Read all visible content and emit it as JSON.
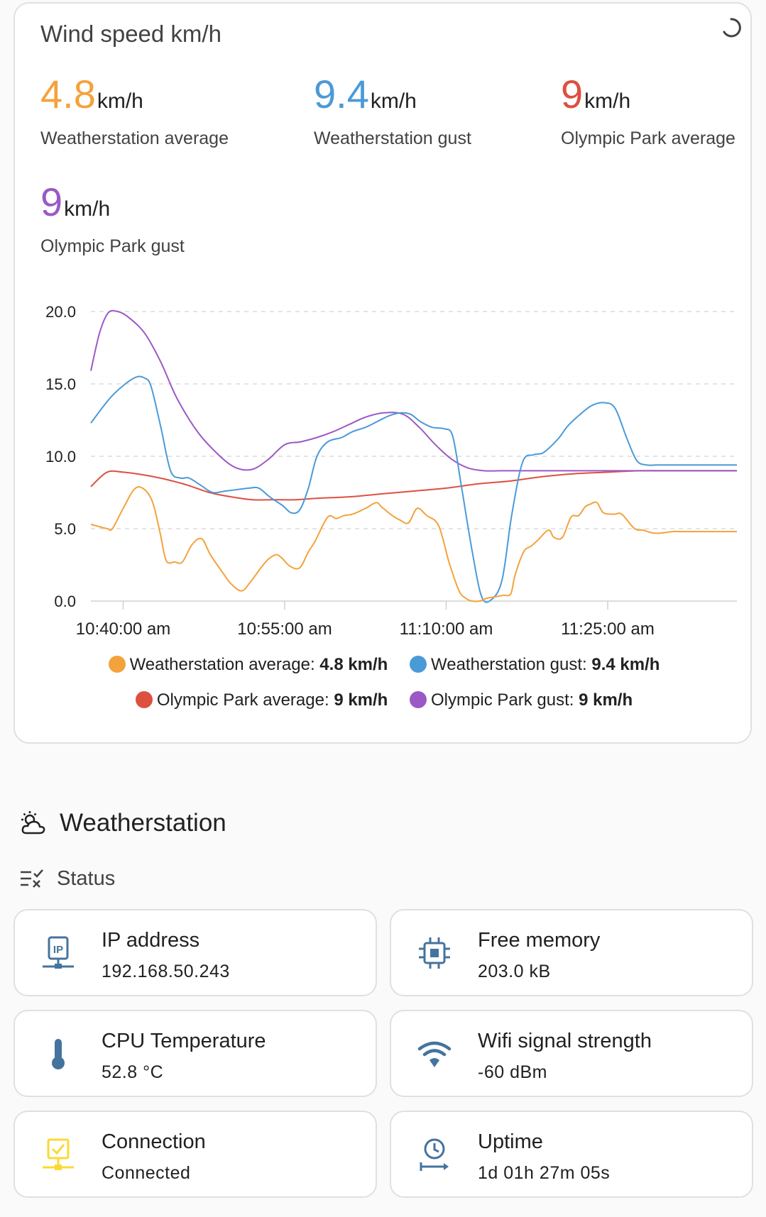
{
  "card": {
    "title": "Wind speed km/h",
    "stats": [
      {
        "value": "4.8",
        "unit": "km/h",
        "label": "Weatherstation average",
        "color": "#f4a23b"
      },
      {
        "value": "9.4",
        "unit": "km/h",
        "label": "Weatherstation gust",
        "color": "#4b9ad8"
      },
      {
        "value": "9",
        "unit": "km/h",
        "label": "Olympic Park average",
        "color": "#dc5040"
      },
      {
        "value": "9",
        "unit": "km/h",
        "label": "Olympic Park gust",
        "color": "#9b59c5"
      }
    ]
  },
  "chart_data": {
    "type": "line",
    "title": "",
    "xlabel": "",
    "ylabel": "",
    "x_ticks": [
      "10:40:00 am",
      "10:55:00 am",
      "11:10:00 am",
      "11:25:00 am"
    ],
    "y_ticks": [
      "0.0",
      "5.0",
      "10.0",
      "15.0",
      "20.0"
    ],
    "ylim": [
      0,
      20
    ],
    "xlim_minutes": [
      0,
      60
    ],
    "x_axis_start": "10:37:00 am",
    "grid": true,
    "legend_position": "bottom",
    "series": [
      {
        "name": "Weatherstation average",
        "legend_value": "4.8 km/h",
        "color": "#f4a23b",
        "x": [
          0,
          1.5,
          2,
          3,
          4,
          4.8,
          5.7,
          6.4,
          7,
          7.8,
          8.5,
          9.4,
          10.3,
          11.1,
          12.3,
          13,
          14,
          14.8,
          15.8,
          16.5,
          17.2,
          17.7,
          18.5,
          19.4,
          20.2,
          20.8,
          22,
          22.8,
          23.5,
          24.3,
          25.5,
          26.5,
          27,
          28,
          28.7,
          29.5,
          30.3,
          31.2,
          32.3,
          33.3,
          34.2,
          34.8,
          35.4,
          36.1,
          36.8,
          37.6,
          38.3,
          39,
          39.4,
          40.2,
          40.9,
          41.5,
          42.5,
          43,
          43.8,
          44.6,
          45.3,
          45.9,
          46.4,
          47,
          47.6,
          48.6,
          49.3,
          50.5,
          51.3,
          52.2,
          53,
          54,
          54.8,
          55.7,
          56.5,
          57.4,
          58.1,
          59,
          60
        ],
        "y": [
          5.3,
          5.0,
          5.0,
          6.4,
          7.7,
          7.8,
          6.9,
          4.8,
          2.8,
          2.7,
          2.7,
          3.9,
          4.3,
          3.2,
          1.9,
          1.2,
          0.7,
          1.3,
          2.3,
          2.9,
          3.2,
          3.0,
          2.4,
          2.3,
          3.4,
          4.1,
          5.8,
          5.7,
          5.9,
          6.0,
          6.4,
          6.8,
          6.5,
          5.9,
          5.6,
          5.4,
          6.4,
          5.9,
          5.2,
          2.6,
          0.7,
          0.2,
          0.0,
          0.0,
          0.2,
          0.3,
          0.4,
          0.5,
          1.8,
          3.4,
          3.8,
          4.2,
          4.9,
          4.4,
          4.4,
          5.8,
          5.9,
          6.5,
          6.7,
          6.8,
          6.1,
          6.0,
          6.0,
          5.0,
          4.9,
          4.7,
          4.7,
          4.8,
          4.8,
          4.8,
          4.8,
          4.8,
          4.8,
          4.8,
          4.8
        ]
      },
      {
        "name": "Weatherstation gust",
        "legend_value": "9.4 km/h",
        "color": "#4b9ad8",
        "x": [
          0,
          2,
          4,
          5,
          5.6,
          6.5,
          7.4,
          8.3,
          9.1,
          10.2,
          11.3,
          12.5,
          13.6,
          14.7,
          15.6,
          16.6,
          17.8,
          18.6,
          19.4,
          20.2,
          21,
          22,
          23.3,
          24.3,
          25.5,
          26.6,
          27.7,
          28.8,
          29.7,
          30.6,
          31.7,
          32.8,
          33.6,
          34.4,
          35.4,
          36.3,
          37.2,
          38.2,
          39.1,
          40.1,
          41.1,
          41.9,
          42.6,
          43.5,
          44.3,
          45.3,
          46.5,
          47.7,
          48.7,
          49.8,
          50.7,
          51.6,
          52.5,
          53.5,
          54.5,
          55,
          56,
          57.3,
          58.5,
          60
        ],
        "y": [
          12.3,
          14.2,
          15.4,
          15.4,
          14.8,
          12.0,
          9.0,
          8.5,
          8.5,
          8.0,
          7.5,
          7.6,
          7.7,
          7.8,
          7.8,
          7.2,
          6.6,
          6.1,
          6.3,
          7.8,
          10.0,
          11.0,
          11.3,
          11.7,
          12.0,
          12.4,
          12.8,
          13.0,
          12.9,
          12.4,
          12.0,
          11.9,
          11.4,
          8.0,
          3.5,
          0.3,
          0.1,
          1.5,
          6.0,
          9.6,
          10.1,
          10.2,
          10.6,
          11.3,
          12.1,
          12.8,
          13.5,
          13.7,
          13.3,
          11.2,
          9.7,
          9.4,
          9.4,
          9.4,
          9.4,
          9.4,
          9.4,
          9.4,
          9.4,
          9.4
        ]
      },
      {
        "name": "Olympic Park average",
        "legend_value": "9 km/h",
        "color": "#dc5040",
        "x": [
          0,
          1.5,
          3,
          5,
          7,
          9,
          11,
          13,
          15,
          17,
          19,
          21,
          24,
          27,
          30,
          33,
          36,
          39,
          42,
          45,
          48,
          51,
          54,
          57,
          60
        ],
        "y": [
          7.9,
          8.9,
          8.9,
          8.7,
          8.4,
          8.0,
          7.5,
          7.2,
          7.0,
          7.0,
          7.0,
          7.1,
          7.2,
          7.4,
          7.6,
          7.8,
          8.1,
          8.3,
          8.6,
          8.8,
          8.9,
          9.0,
          9.0,
          9.0,
          9.0
        ]
      },
      {
        "name": "Olympic Park gust",
        "legend_value": "9 km/h",
        "color": "#9b59c5",
        "x": [
          0,
          0.8,
          1.6,
          2.5,
          3.5,
          5,
          6.5,
          8,
          10,
          12,
          13.5,
          15,
          16.5,
          18,
          19.5,
          21,
          22.5,
          24,
          25.5,
          27.2,
          29,
          30.5,
          32,
          33.5,
          35,
          36.5,
          38,
          40,
          43,
          46,
          50,
          54,
          60
        ],
        "y": [
          15.9,
          18.5,
          19.9,
          20.0,
          19.6,
          18.5,
          16.5,
          14.0,
          11.6,
          10.0,
          9.2,
          9.1,
          9.8,
          10.8,
          11.0,
          11.3,
          11.7,
          12.2,
          12.7,
          13.0,
          12.9,
          12.0,
          10.8,
          9.8,
          9.2,
          9.0,
          9.0,
          9.0,
          9.0,
          9.0,
          9.0,
          9.0,
          9.0
        ]
      }
    ]
  },
  "section": {
    "title": "Weatherstation",
    "subsection": "Status"
  },
  "tiles": [
    {
      "name": "IP address",
      "value": "192.168.50.243",
      "icon": "ip-network-icon",
      "color": "#44739e"
    },
    {
      "name": "Free memory",
      "value": "203.0 kB",
      "icon": "chip-icon",
      "color": "#44739e"
    },
    {
      "name": "CPU Temperature",
      "value": "52.8 °C",
      "icon": "thermometer-icon",
      "color": "#44739e"
    },
    {
      "name": "Wifi signal strength",
      "value": "-60 dBm",
      "icon": "wifi-icon",
      "color": "#44739e"
    },
    {
      "name": "Connection",
      "value": "Connected",
      "icon": "lan-connect-icon",
      "color": "#fdd835"
    },
    {
      "name": "Uptime",
      "value": "1d 01h 27m 05s",
      "icon": "clock-start-icon",
      "color": "#44739e"
    }
  ]
}
